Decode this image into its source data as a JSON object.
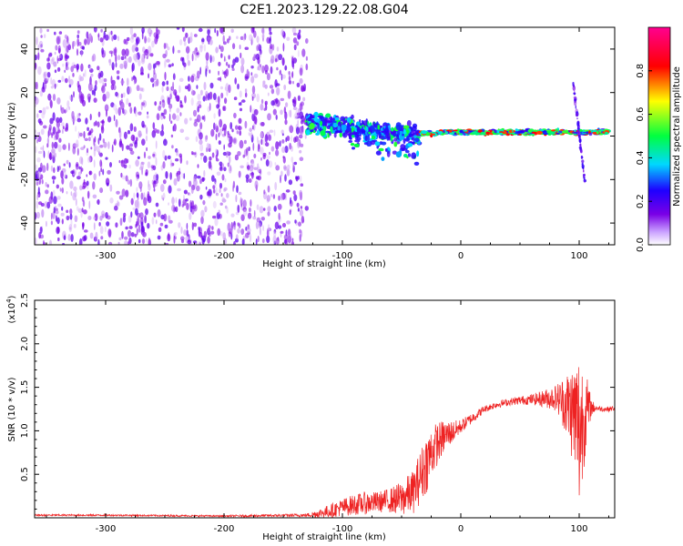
{
  "title": "C2E1.2023.129.22.08.G04",
  "chart_data": [
    {
      "type": "heatmap",
      "xlabel": "Height of straight line (km)",
      "ylabel": "Frequency (Hz)",
      "xlim": [
        -360,
        130
      ],
      "ylim": [
        -50,
        50
      ],
      "xticks": [
        -300,
        -200,
        -100,
        0,
        100
      ],
      "yticks": [
        -40,
        -20,
        0,
        20,
        40
      ],
      "colorbar": {
        "label": "Normalized spectral amplitude",
        "range": [
          0,
          1
        ],
        "ticks": [
          0.0,
          0.2,
          0.4,
          0.6,
          0.8
        ],
        "colors": [
          "#ffffff",
          "#7a00e6",
          "#1e00ff",
          "#00d8ff",
          "#00ff40",
          "#ffff00",
          "#ff0000",
          "#ff0080"
        ]
      },
      "series": [
        {
          "x": [
            -360,
            -130
          ],
          "y": [
            -50,
            50
          ],
          "amplitude": [
            0.0,
            0.3
          ]
        },
        {
          "x": [
            -130,
            -35
          ],
          "y": [
            -20,
            12
          ],
          "amplitude": [
            0.2,
            0.5
          ]
        },
        {
          "x": [
            -35,
            125
          ],
          "y": [
            0,
            3
          ],
          "amplitude": [
            0.5,
            0.9
          ]
        },
        {
          "x": [
            95,
            105
          ],
          "y": [
            -22,
            24
          ],
          "amplitude": [
            0.1,
            0.3
          ]
        }
      ],
      "grid": false
    },
    {
      "type": "line",
      "xlabel": "Height of straight line (km)",
      "ylabel": "SNR (10 * v/v)",
      "yscale_label": "(x10",
      "yscale_exp": "4",
      "yscale_close": ")",
      "xlim": [
        -360,
        130
      ],
      "ylim": [
        0,
        2.5
      ],
      "xticks": [
        -300,
        -200,
        -100,
        0,
        100
      ],
      "yticks": [
        0.5,
        1.0,
        1.5,
        2.0,
        2.5
      ],
      "color": "#ee2222",
      "series": [
        {
          "x": [
            -360,
            -300,
            -200,
            -130,
            -120,
            -110,
            -100,
            -90,
            -80,
            -70,
            -60,
            -50,
            -40,
            -35,
            -30,
            -25,
            -20,
            -15,
            -10,
            -5,
            0,
            10,
            20,
            30,
            40,
            50,
            60,
            70,
            80,
            85,
            90,
            95,
            98,
            100,
            102,
            105,
            108,
            110,
            115,
            120,
            125,
            130
          ],
          "y": [
            0.03,
            0.03,
            0.02,
            0.03,
            0.05,
            0.08,
            0.12,
            0.15,
            0.17,
            0.18,
            0.2,
            0.22,
            0.3,
            0.45,
            0.6,
            0.75,
            0.85,
            0.92,
            0.97,
            1.0,
            1.05,
            1.15,
            1.25,
            1.3,
            1.33,
            1.35,
            1.36,
            1.37,
            1.38,
            1.35,
            1.3,
            1.2,
            1.1,
            1.0,
            1.1,
            1.2,
            1.25,
            1.27,
            1.26,
            1.25,
            1.25,
            1.26
          ],
          "noise": [
            0.01,
            0.01,
            0.01,
            0.02,
            0.05,
            0.08,
            0.1,
            0.12,
            0.13,
            0.12,
            0.14,
            0.2,
            0.25,
            0.3,
            0.35,
            0.3,
            0.25,
            0.2,
            0.15,
            0.12,
            0.08,
            0.06,
            0.04,
            0.04,
            0.04,
            0.05,
            0.06,
            0.1,
            0.15,
            0.25,
            0.4,
            0.6,
            0.8,
            1.0,
            0.8,
            0.5,
            0.3,
            0.1,
            0.03,
            0.03,
            0.03,
            0.03
          ]
        }
      ],
      "grid": false
    }
  ]
}
